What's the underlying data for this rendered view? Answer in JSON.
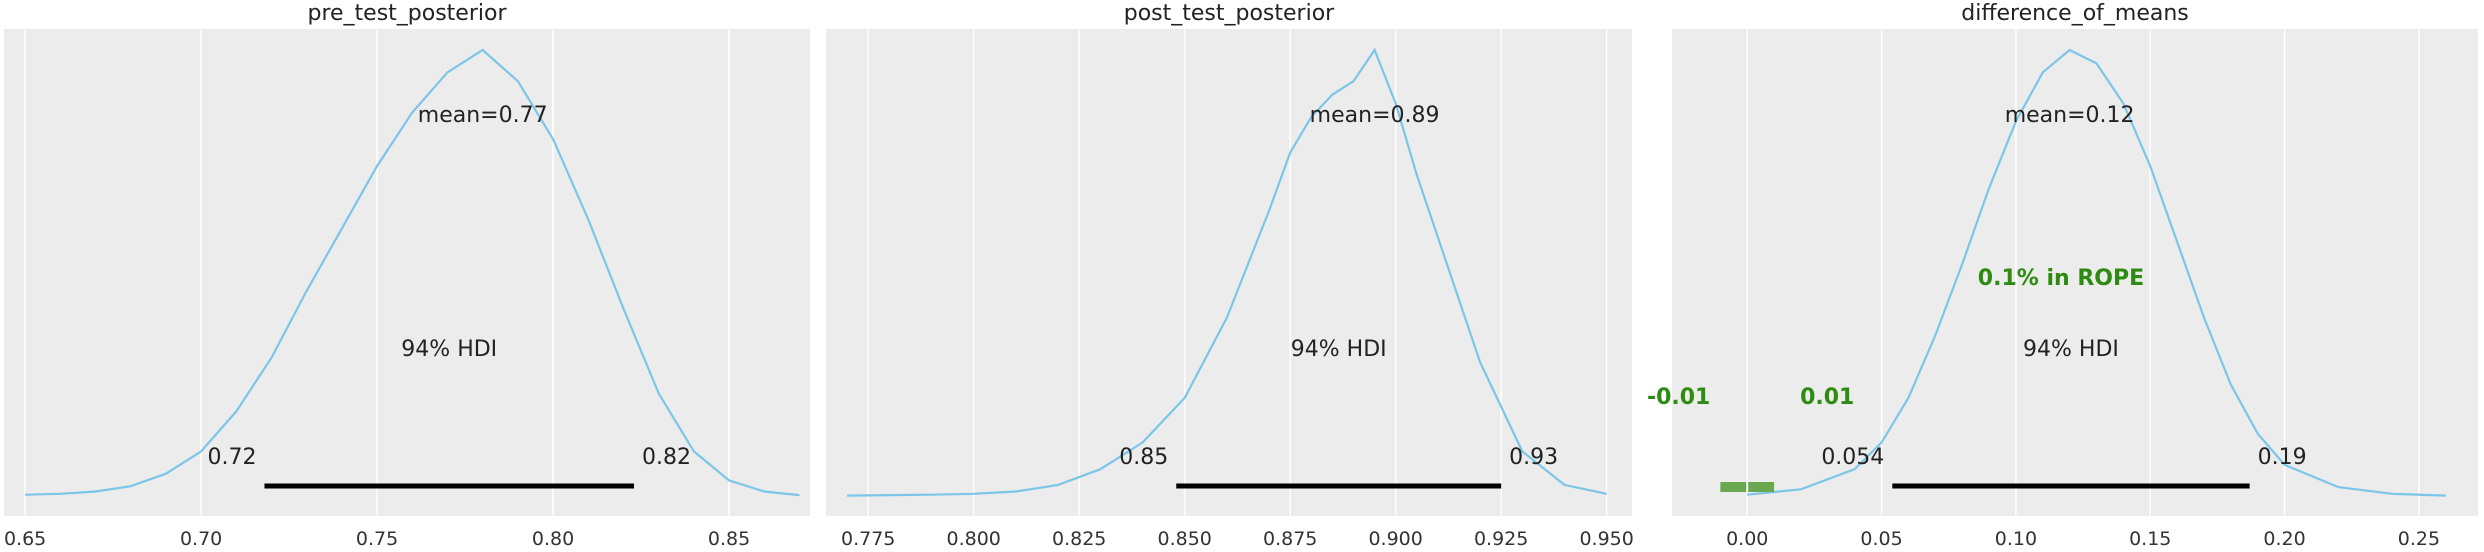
{
  "colors": {
    "kde": "#7bc6e8",
    "hdi": "#000000",
    "rope": "#2e8b11",
    "rope_bar": "#6aa84f",
    "panel_bg": "#ececec"
  },
  "chart_data": [
    {
      "type": "line",
      "title": "pre_test_posterior",
      "mean_label": "mean=0.77",
      "hdi_label": "94% HDI",
      "hdi": [
        0.718,
        0.823
      ],
      "hdi_low_label": "0.72",
      "hdi_high_label": "0.82",
      "xlim": [
        0.644,
        0.873
      ],
      "xticks": [
        0.65,
        0.7,
        0.75,
        0.8,
        0.85
      ],
      "xtick_labels": [
        "0.65",
        "0.70",
        "0.75",
        "0.80",
        "0.85"
      ],
      "x": [
        0.65,
        0.66,
        0.67,
        0.68,
        0.69,
        0.7,
        0.71,
        0.72,
        0.73,
        0.74,
        0.75,
        0.76,
        0.77,
        0.78,
        0.79,
        0.8,
        0.81,
        0.82,
        0.83,
        0.84,
        0.85,
        0.86,
        0.87
      ],
      "density": [
        0.3,
        0.5,
        1.0,
        2.2,
        5.0,
        10.0,
        19.0,
        31.0,
        46.0,
        60.0,
        74.0,
        86.0,
        95.0,
        100.0,
        93.0,
        80.0,
        62.0,
        42.0,
        23.0,
        10.0,
        3.5,
        1.0,
        0.2
      ]
    },
    {
      "type": "line",
      "title": "post_test_posterior",
      "mean_label": "mean=0.89",
      "hdi_label": "94% HDI",
      "hdi": [
        0.848,
        0.925
      ],
      "hdi_low_label": "0.85",
      "hdi_high_label": "0.93",
      "xlim": [
        0.765,
        0.956
      ],
      "xticks": [
        0.775,
        0.8,
        0.825,
        0.85,
        0.875,
        0.9,
        0.925,
        0.95
      ],
      "xtick_labels": [
        "0.775",
        "0.800",
        "0.825",
        "0.850",
        "0.875",
        "0.900",
        "0.925",
        "0.950"
      ],
      "x": [
        0.77,
        0.78,
        0.79,
        0.8,
        0.81,
        0.82,
        0.83,
        0.84,
        0.85,
        0.86,
        0.87,
        0.875,
        0.88,
        0.885,
        0.89,
        0.895,
        0.9,
        0.905,
        0.91,
        0.92,
        0.93,
        0.94,
        0.95
      ],
      "density": [
        0.1,
        0.2,
        0.3,
        0.5,
        1.0,
        2.5,
        6.0,
        12.0,
        22.0,
        40.0,
        64.0,
        77.0,
        85.0,
        90.0,
        93.0,
        100.0,
        88.0,
        72.0,
        58.0,
        30.0,
        10.0,
        2.5,
        0.5
      ]
    },
    {
      "type": "line",
      "title": "difference_of_means",
      "mean_label": "mean=0.12",
      "hdi_label": "94% HDI",
      "hdi": [
        0.054,
        0.187
      ],
      "hdi_low_label": "0.054",
      "hdi_high_label": "0.19",
      "rope": [
        -0.01,
        0.01
      ],
      "rope_label": "0.1% in ROPE",
      "rope_low_label": "-0.01",
      "rope_high_label": "0.01",
      "xlim": [
        -0.028,
        0.272
      ],
      "xticks": [
        0.0,
        0.05,
        0.1,
        0.15,
        0.2,
        0.25
      ],
      "xtick_labels": [
        "0.00",
        "0.05",
        "0.10",
        "0.15",
        "0.20",
        "0.25"
      ],
      "x": [
        0.0,
        0.02,
        0.04,
        0.05,
        0.06,
        0.07,
        0.08,
        0.09,
        0.1,
        0.11,
        0.12,
        0.13,
        0.14,
        0.15,
        0.16,
        0.17,
        0.18,
        0.19,
        0.2,
        0.22,
        0.24,
        0.26
      ],
      "density": [
        0.3,
        1.5,
        6.0,
        12.0,
        22.0,
        36.0,
        52.0,
        69.0,
        84.0,
        95.0,
        100.0,
        97.0,
        88.0,
        74.0,
        57.0,
        40.0,
        25.0,
        14.0,
        7.0,
        2.0,
        0.5,
        0.1
      ]
    }
  ]
}
